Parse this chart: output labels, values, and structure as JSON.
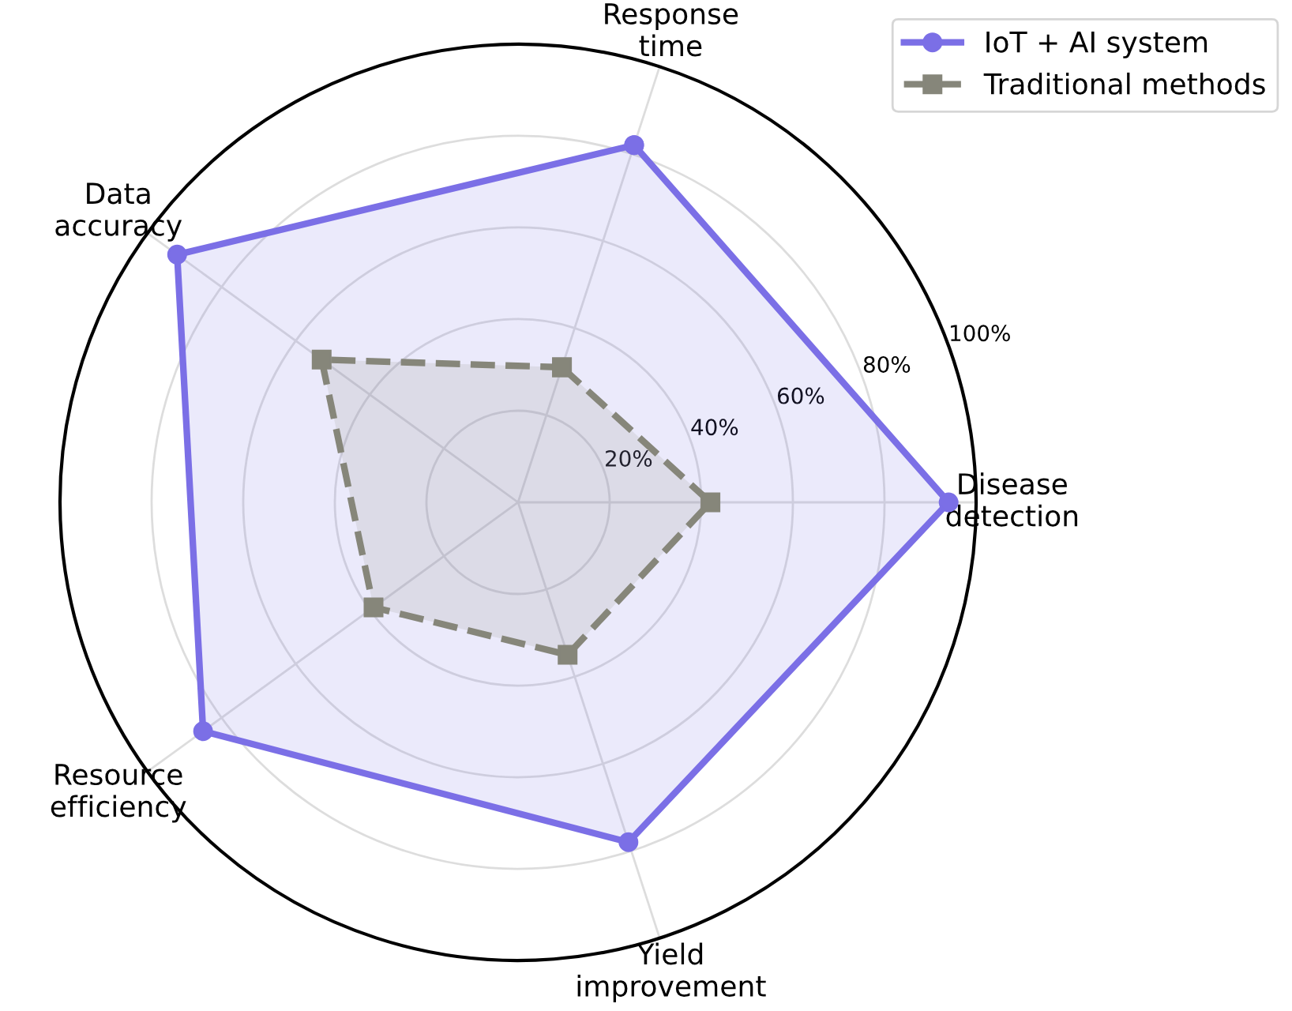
{
  "chart_data": {
    "type": "radar",
    "categories": [
      "Response\ntime",
      "Disease\ndetection",
      "Yield\nimprovement",
      "Resource\nefficiency",
      "Data\naccuracy"
    ],
    "series": [
      {
        "name": "IoT + AI system",
        "color": "#7b6fe6",
        "values": [
          82,
          94,
          78,
          85,
          92
        ],
        "marker": "circle",
        "line_style": "solid"
      },
      {
        "name": "Traditional methods",
        "color": "#86867a",
        "values": [
          31,
          42,
          35,
          39,
          53
        ],
        "marker": "square",
        "line_style": "dashed"
      }
    ],
    "ylim": [
      0,
      100
    ],
    "yticks": [
      {
        "value": 20,
        "label": "20%"
      },
      {
        "value": 40,
        "label": "40%"
      },
      {
        "value": 60,
        "label": "60%"
      },
      {
        "value": 80,
        "label": "80%"
      },
      {
        "value": 100,
        "label": "100%"
      }
    ],
    "grid": true,
    "legend": "top right"
  }
}
